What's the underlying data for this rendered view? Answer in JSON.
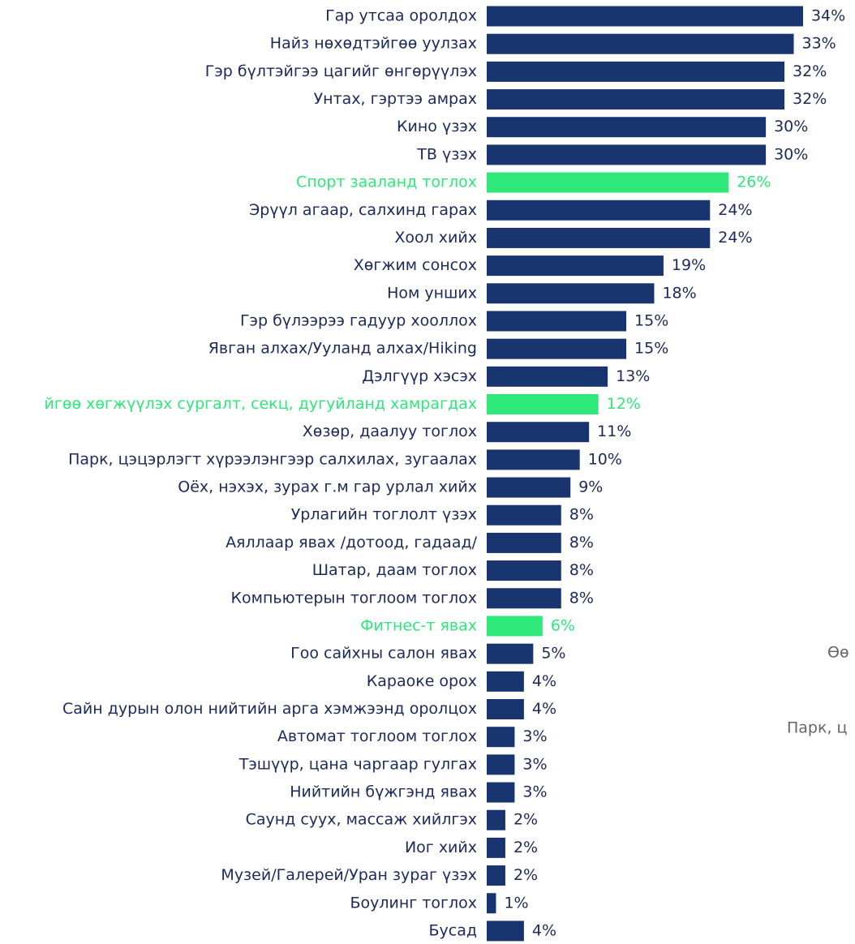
{
  "chart_data": {
    "type": "bar",
    "orientation": "horizontal",
    "categories": [
      "Гар утсаа оролдох",
      "Найз нөхөдтэйгөө уулзах",
      "Гэр бүлтэйгээ цагийг өнгөрүүлэх",
      "Унтах, гэртээ амрах",
      "Кино үзэх",
      "ТВ үзэх",
      "Спорт зааланд тоглох",
      "Эрүүл агаар, салхинд гарах",
      "Хоол хийх",
      "Хөгжим сонсох",
      "Ном унших",
      "Гэр бүлээрээ гадуур хооллох",
      "Явган алхах/Ууланд алхах/Hiking",
      "Дэлгүүр хэсэх",
      "йгөө хөгжүүлэх сургалт, секц, дугуйланд хамрагдах",
      "Хөзөр, даалуу тоглох",
      "Парк, цэцэрлэгт хүрээлэнгээр салхилах, зугаалах",
      "Оёх, нэхэх, зурах г.м гар урлал хийх",
      "Урлагийн тоглолт үзэх",
      "Аяллаар явах /дотоод, гадаад/",
      "Шатар, даам тоглох",
      "Компьютерын тоглоом тоглох",
      "Фитнес-т явах",
      "Гоо сайхны салон явах",
      "Караоке орох",
      "Сайн дурын олон нийтийн арга хэмжээнд оролцох",
      "Автомат тоглоом тоглох",
      "Тэшүүр, цана чаргаар гулгах",
      "Нийтийн бүжгэнд явах",
      "Саунд суух, массаж хийлгэх",
      "Иог хийх",
      "Музей/Галерей/Уран зураг үзэх",
      "Боулинг тоглох",
      "Бусад"
    ],
    "values": [
      34,
      33,
      32,
      32,
      30,
      30,
      26,
      24,
      24,
      19,
      18,
      15,
      15,
      13,
      12,
      11,
      10,
      9,
      8,
      8,
      8,
      8,
      6,
      5,
      4,
      4,
      3,
      3,
      3,
      2,
      2,
      2,
      1,
      4
    ],
    "value_labels": [
      "34%",
      "33%",
      "32%",
      "32%",
      "30%",
      "30%",
      "26%",
      "24%",
      "24%",
      "19%",
      "18%",
      "15%",
      "15%",
      "13%",
      "12%",
      "11%",
      "10%",
      "9%",
      "8%",
      "8%",
      "8%",
      "8%",
      "6%",
      "5%",
      "4%",
      "4%",
      "3%",
      "3%",
      "3%",
      "2%",
      "2%",
      "2%",
      "1%",
      "4%"
    ],
    "colors": [
      "#19356f",
      "#19356f",
      "#19356f",
      "#19356f",
      "#19356f",
      "#19356f",
      "#2ee879",
      "#19356f",
      "#19356f",
      "#19356f",
      "#19356f",
      "#19356f",
      "#19356f",
      "#19356f",
      "#2ee879",
      "#19356f",
      "#19356f",
      "#19356f",
      "#19356f",
      "#19356f",
      "#19356f",
      "#19356f",
      "#2ee879",
      "#19356f",
      "#19356f",
      "#19356f",
      "#19356f",
      "#19356f",
      "#19356f",
      "#19356f",
      "#19356f",
      "#19356f",
      "#19356f",
      "#19356f"
    ],
    "annotations": [
      "Өө",
      "Парк, ц"
    ]
  }
}
